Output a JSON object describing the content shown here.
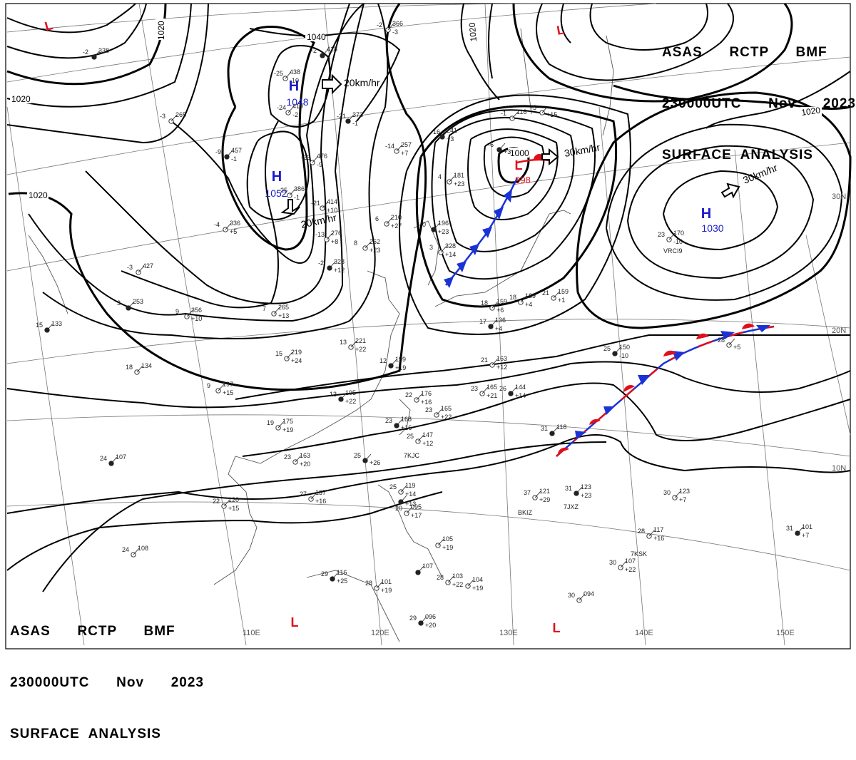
{
  "header": {
    "line1": "ASAS      RCTP      BMF",
    "line2": "230000UTC      Nov      2023",
    "line3": "SURFACE  ANALYSIS"
  },
  "colors": {
    "high": "#1a1acc",
    "low": "#e0101a",
    "isobar": "#000000",
    "coast": "#555555",
    "grid": "#777777",
    "cold_front": "#1a33d6",
    "warm_front": "#e0101a"
  },
  "isobar_labels": [
    "1040",
    "1020",
    "1020",
    "1020",
    "1020",
    "1000",
    "1020"
  ],
  "longitude_labels": [
    "110E",
    "120E",
    "130E",
    "140E",
    "150E"
  ],
  "latitude_labels": [
    "30N",
    "20N",
    "10N"
  ],
  "pressure_systems": [
    {
      "type": "H",
      "value": "1048",
      "motion": "20km/hr"
    },
    {
      "type": "H",
      "value": "1052",
      "motion": "20km/hr"
    },
    {
      "type": "L",
      "value": "998",
      "motion": "30km/hr"
    },
    {
      "type": "H",
      "value": "1030",
      "motion": "30km/hr"
    },
    {
      "type": "L",
      "value": ""
    },
    {
      "type": "L",
      "value": ""
    },
    {
      "type": "L",
      "value": ""
    },
    {
      "type": "L",
      "value": ""
    }
  ],
  "stations": [
    {
      "t": "-2",
      "p": "418",
      "d": "3"
    },
    {
      "t": "-25",
      "p": "438",
      "d": "-10"
    },
    {
      "t": "-24",
      "p": "419",
      "d": "-2"
    },
    {
      "t": "-21",
      "p": "373",
      "d": "-1"
    },
    {
      "t": "-23",
      "p": "476",
      "d": "-9"
    },
    {
      "t": "-21",
      "p": "414",
      "d": "+10"
    },
    {
      "t": "-16",
      "p": "241",
      "d": "+3"
    },
    {
      "t": "-14",
      "p": "257",
      "d": "+7"
    },
    {
      "t": "-4",
      "p": "336",
      "d": "+5"
    },
    {
      "t": "-9",
      "p": "457",
      "d": "-1"
    },
    {
      "t": "-3",
      "p": "265",
      "d": ""
    },
    {
      "t": "-25",
      "p": "386",
      "d": "-1"
    },
    {
      "t": "-2",
      "p": "338",
      "d": ""
    },
    {
      "t": "-13",
      "p": "276",
      "d": "+8"
    },
    {
      "t": "-3",
      "p": "427",
      "d": ""
    },
    {
      "t": "-2",
      "p": "328",
      "d": "+12"
    },
    {
      "t": "8",
      "p": "262",
      "d": "+23"
    },
    {
      "t": "6",
      "p": "210",
      "d": "+27"
    },
    {
      "t": "0",
      "p": "196",
      "d": "+23"
    },
    {
      "t": "4",
      "p": "181",
      "d": "+23"
    },
    {
      "t": "3",
      "p": "328",
      "d": "+14"
    },
    {
      "t": "3",
      "p": "253",
      "d": ""
    },
    {
      "t": "9",
      "p": "356",
      "d": "+10"
    },
    {
      "t": "7",
      "p": "265",
      "d": "+13"
    },
    {
      "t": "15",
      "p": "133",
      "d": ""
    },
    {
      "t": "18",
      "p": "134",
      "d": ""
    },
    {
      "t": "13",
      "p": "221",
      "d": "+22"
    },
    {
      "t": "12",
      "p": "199",
      "d": "+19"
    },
    {
      "t": "15",
      "p": "219",
      "d": "+24"
    },
    {
      "t": "9",
      "p": "197",
      "d": "+15"
    },
    {
      "t": "13",
      "p": "195",
      "d": "+22"
    },
    {
      "t": "21",
      "p": "163",
      "d": "+12"
    },
    {
      "t": "23",
      "p": "165",
      "d": "+21"
    },
    {
      "t": "26",
      "p": "144",
      "d": "+14"
    },
    {
      "t": "22",
      "p": "176",
      "d": "+16"
    },
    {
      "t": "23",
      "p": "165",
      "d": "+22"
    },
    {
      "t": "23",
      "p": "168",
      "d": "+16"
    },
    {
      "t": "25",
      "p": "147",
      "d": "+12"
    },
    {
      "t": "18",
      "p": "159",
      "d": "+6"
    },
    {
      "t": "17",
      "p": "136",
      "d": "+4"
    },
    {
      "t": "21",
      "p": "159",
      "d": "+1"
    },
    {
      "t": "18",
      "p": "189",
      "d": "+4"
    },
    {
      "t": "25",
      "p": "150",
      "d": "-10"
    },
    {
      "t": "28",
      "p": "",
      "d": "+5"
    },
    {
      "t": "23",
      "p": "170",
      "d": "-10"
    },
    {
      "t": "31",
      "p": "118",
      "d": ""
    },
    {
      "t": "19",
      "p": "175",
      "d": "+19"
    },
    {
      "t": "23",
      "p": "163",
      "d": "+20"
    },
    {
      "t": "25",
      "p": "",
      "d": "+26"
    },
    {
      "t": "27",
      "p": "137",
      "d": "+16"
    },
    {
      "t": "22",
      "p": "120",
      "d": "+15"
    },
    {
      "t": "24",
      "p": "107",
      "d": ""
    },
    {
      "t": "24",
      "p": "108",
      "d": ""
    },
    {
      "t": "25",
      "p": "119",
      "d": "+14"
    },
    {
      "t": "",
      "p": "",
      "d": "+13"
    },
    {
      "t": "20",
      "p": "095",
      "d": "+17"
    },
    {
      "t": "37",
      "p": "121",
      "d": "+29"
    },
    {
      "t": "31",
      "p": "123",
      "d": "+23"
    },
    {
      "t": "30",
      "p": "123",
      "d": "+7"
    },
    {
      "t": "28",
      "p": "117",
      "d": "+16"
    },
    {
      "t": "31",
      "p": "101",
      "d": "+7"
    },
    {
      "t": "30",
      "p": "107",
      "d": "+22"
    },
    {
      "t": "",
      "p": "105",
      "d": "+19"
    },
    {
      "t": "",
      "p": "107",
      "d": ""
    },
    {
      "t": "28",
      "p": "103",
      "d": "+22"
    },
    {
      "t": "",
      "p": "104",
      "d": "+19"
    },
    {
      "t": "29",
      "p": "116",
      "d": "+25"
    },
    {
      "t": "28",
      "p": "101",
      "d": "+19"
    },
    {
      "t": "30",
      "p": "094",
      "d": ""
    },
    {
      "t": "29",
      "p": "096",
      "d": "+20"
    },
    {
      "t": "-1",
      "p": "116",
      "d": ""
    },
    {
      "t": "-2",
      "p": "366",
      "d": "-3"
    },
    {
      "t": "-6",
      "p": "",
      "d": "+3"
    },
    {
      "t": "-5",
      "p": "",
      "d": "+15"
    }
  ],
  "ship_callsigns": [
    "VRCI9",
    "7KJC",
    "BKIZ",
    "7JXZ",
    "7KSK"
  ]
}
